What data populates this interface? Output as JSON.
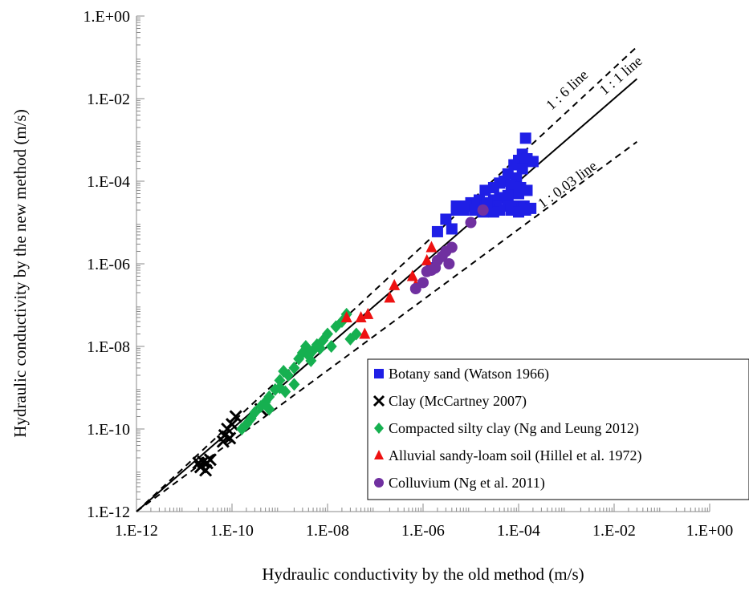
{
  "chart_data": {
    "type": "scatter",
    "xlabel": "Hydraulic conductivity by the old method (m/s)",
    "ylabel": "Hydraulic conductivity by the new method (m/s)",
    "x_scale": "log",
    "y_scale": "log",
    "xlim": [
      1e-12,
      1
    ],
    "ylim": [
      1e-12,
      1
    ],
    "x_ticks": [
      "1.E-12",
      "1.E-10",
      "1.E-08",
      "1.E-06",
      "1.E-04",
      "1.E-02",
      "1.E+00"
    ],
    "y_ticks": [
      "1.E-12",
      "1.E-10",
      "1.E-08",
      "1.E-06",
      "1.E-04",
      "1.E-02",
      "1.E+00"
    ],
    "grid": false,
    "legend_position": "bottom-right",
    "reference_lines": [
      {
        "label": "1 : 6 line",
        "ratio": 6,
        "style": "dashed"
      },
      {
        "label": "1 : 1 line",
        "ratio": 1,
        "style": "solid"
      },
      {
        "label": "1 : 0.03 line",
        "ratio": 0.03,
        "style": "dashed"
      }
    ],
    "series": [
      {
        "name": "Botany sand (Watson 1966)",
        "marker": "square",
        "color": "#1f1fe6",
        "points": [
          [
            0.00014,
            0.0011
          ],
          [
            0.00012,
            0.00045
          ],
          [
            0.00015,
            0.00035
          ],
          [
            0.0002,
            0.0003
          ],
          [
            0.0001,
            0.00032
          ],
          [
            8e-05,
            0.00025
          ],
          [
            0.00012,
            0.0002
          ],
          [
            6e-05,
            0.00015
          ],
          [
            9e-05,
            0.00012
          ],
          [
            5e-05,
            0.0001
          ],
          [
            4e-05,
            9e-05
          ],
          [
            7e-05,
            8e-05
          ],
          [
            0.00011,
            7e-05
          ],
          [
            0.00015,
            6e-05
          ],
          [
            3e-05,
            7e-05
          ],
          [
            2e-05,
            6e-05
          ],
          [
            0.0001,
            5e-05
          ],
          [
            6e-05,
            4.5e-05
          ],
          [
            4e-05,
            4e-05
          ],
          [
            3e-05,
            3.5e-05
          ],
          [
            1.5e-05,
            3.5e-05
          ],
          [
            1e-05,
            3e-05
          ],
          [
            8e-06,
            2.5e-05
          ],
          [
            5e-06,
            2.5e-05
          ],
          [
            2e-05,
            2.5e-05
          ],
          [
            3.5e-05,
            2.5e-05
          ],
          [
            6e-05,
            2.5e-05
          ],
          [
            9e-05,
            2.5e-05
          ],
          [
            0.00013,
            2.5e-05
          ],
          [
            0.00018,
            2.2e-05
          ],
          [
            5e-06,
            2e-05
          ],
          [
            7e-06,
            2e-05
          ],
          [
            1.2e-05,
            2e-05
          ],
          [
            2.5e-05,
            2e-05
          ],
          [
            4e-05,
            2e-05
          ],
          [
            7e-05,
            2e-05
          ],
          [
            0.0001,
            1.8e-05
          ],
          [
            0.00014,
            2e-05
          ],
          [
            3e-05,
            1.8e-05
          ],
          [
            1.8e-05,
            1.8e-05
          ],
          [
            3e-06,
            1.2e-05
          ],
          [
            2e-06,
            6e-06
          ],
          [
            4e-06,
            7e-06
          ],
          [
            1.5e-06,
            8e-07
          ],
          [
            2.2e-05,
            3e-05
          ]
        ]
      },
      {
        "name": "Clay (McCartney 2007)",
        "marker": "x",
        "color": "#000000",
        "points": [
          [
            1.2e-10,
            2e-10
          ],
          [
            1e-10,
            1.3e-10
          ],
          [
            8e-11,
            1e-10
          ],
          [
            7e-11,
            7e-11
          ],
          [
            9e-11,
            6e-11
          ],
          [
            6.5e-11,
            5e-11
          ],
          [
            4e-10,
            3e-10
          ],
          [
            3.5e-11,
            1.8e-11
          ],
          [
            3e-11,
            1.5e-11
          ],
          [
            2.5e-11,
            1.6e-11
          ],
          [
            2.2e-11,
            1.2e-11
          ],
          [
            2.8e-11,
            1e-11
          ],
          [
            2e-11,
            1.5e-11
          ]
        ]
      },
      {
        "name": "Compacted silty clay (Ng and Leung 2012)",
        "marker": "diamond",
        "color": "#16b050",
        "points": [
          [
            1.6e-10,
            1e-10
          ],
          [
            2e-10,
            1.3e-10
          ],
          [
            2.5e-10,
            1.8e-10
          ],
          [
            3e-10,
            2.5e-10
          ],
          [
            4e-10,
            3.5e-10
          ],
          [
            5e-10,
            4.5e-10
          ],
          [
            6e-10,
            6e-10
          ],
          [
            8e-10,
            9e-10
          ],
          [
            1e-09,
            1.5e-09
          ],
          [
            1.2e-09,
            2.5e-09
          ],
          [
            1.5e-09,
            2e-09
          ],
          [
            2e-09,
            3e-09
          ],
          [
            2.5e-09,
            5e-09
          ],
          [
            3e-09,
            7e-09
          ],
          [
            3.5e-09,
            1e-08
          ],
          [
            4e-09,
            6e-09
          ],
          [
            5e-09,
            8e-09
          ],
          [
            6e-09,
            1.1e-08
          ],
          [
            8e-09,
            1.4e-08
          ],
          [
            1e-08,
            2e-08
          ],
          [
            1.5e-08,
            3e-08
          ],
          [
            2e-08,
            4e-08
          ],
          [
            2.5e-08,
            6e-08
          ],
          [
            3e-08,
            1.5e-08
          ],
          [
            4e-08,
            2e-08
          ],
          [
            1.2e-08,
            1e-08
          ],
          [
            7e-09,
            9e-09
          ],
          [
            4.5e-09,
            4.5e-09
          ],
          [
            2e-09,
            1.2e-09
          ],
          [
            1e-09,
            1e-09
          ],
          [
            6e-10,
            3e-10
          ],
          [
            1.3e-09,
            8e-10
          ]
        ]
      },
      {
        "name": "Alluvial sandy-loam soil (Hillel et al. 1972)",
        "marker": "triangle",
        "color": "#ee1111",
        "points": [
          [
            1.5e-06,
            2.5e-06
          ],
          [
            1.2e-06,
            1.2e-06
          ],
          [
            6e-07,
            5e-07
          ],
          [
            7e-07,
            3e-07
          ],
          [
            2.5e-07,
            3e-07
          ],
          [
            2e-07,
            1.5e-07
          ],
          [
            7e-08,
            6e-08
          ],
          [
            5e-08,
            5e-08
          ],
          [
            2.5e-08,
            5e-08
          ],
          [
            6e-08,
            2e-08
          ]
        ]
      },
      {
        "name": "Colluvium (Ng et al. 2011)",
        "marker": "circle",
        "color": "#7030a0",
        "points": [
          [
            1.8e-05,
            2e-05
          ],
          [
            1e-05,
            1e-05
          ],
          [
            4e-06,
            2.5e-06
          ],
          [
            3e-06,
            2e-06
          ],
          [
            2.5e-06,
            1.5e-06
          ],
          [
            2e-06,
            1.2e-06
          ],
          [
            3.5e-06,
            1e-06
          ],
          [
            1.8e-06,
            8e-07
          ],
          [
            1.5e-06,
            7e-07
          ],
          [
            1.2e-06,
            6.5e-07
          ],
          [
            1e-06,
            3.5e-07
          ],
          [
            7e-07,
            2.5e-07
          ]
        ]
      }
    ]
  }
}
